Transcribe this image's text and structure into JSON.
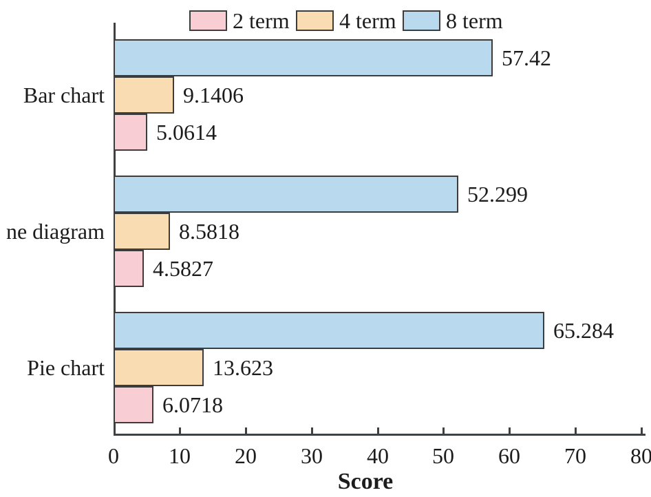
{
  "chart_data": {
    "type": "bar",
    "orientation": "horizontal",
    "title": "",
    "xlabel": "Score",
    "ylabel": "",
    "xlim": [
      0,
      80
    ],
    "xticks": [
      0,
      10,
      20,
      30,
      40,
      50,
      60,
      70,
      80
    ],
    "grid": false,
    "categories": [
      "Bar chart",
      "ne diagram",
      "Pie chart"
    ],
    "series": [
      {
        "name": "2 term",
        "color": "#F8CDD3",
        "values": [
          5.0614,
          4.5827,
          6.0718
        ],
        "labels": [
          "5.0614",
          "4.5827",
          "6.0718"
        ]
      },
      {
        "name": "4 term",
        "color": "#FADCB2",
        "values": [
          9.1406,
          8.5818,
          13.623
        ],
        "labels": [
          "9.1406",
          "8.5818",
          "13.623"
        ]
      },
      {
        "name": "8 term",
        "color": "#B9D9EF",
        "values": [
          57.42,
          52.299,
          65.284
        ],
        "labels": [
          "57.42",
          "52.299",
          "65.284"
        ]
      }
    ],
    "legend": {
      "position": "top",
      "entries": [
        "2 term",
        "4 term",
        "8 term"
      ]
    },
    "colors": {
      "bar_border": "#3C3C3C",
      "axis": "#3D4144",
      "text": "#1C1C1C"
    }
  }
}
